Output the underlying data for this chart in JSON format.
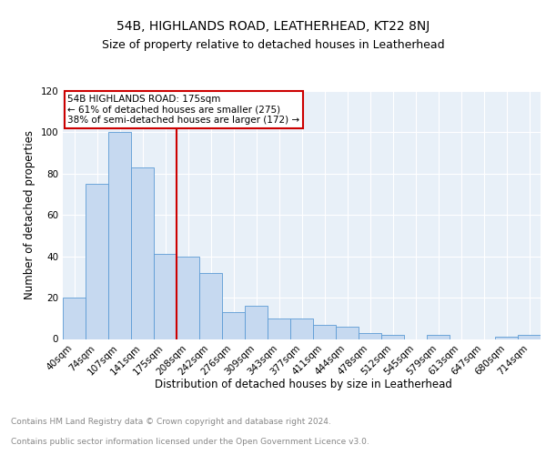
{
  "title": "54B, HIGHLANDS ROAD, LEATHERHEAD, KT22 8NJ",
  "subtitle": "Size of property relative to detached houses in Leatherhead",
  "xlabel": "Distribution of detached houses by size in Leatherhead",
  "ylabel": "Number of detached properties",
  "footer_line1": "Contains HM Land Registry data © Crown copyright and database right 2024.",
  "footer_line2": "Contains public sector information licensed under the Open Government Licence v3.0.",
  "categories": [
    "40sqm",
    "74sqm",
    "107sqm",
    "141sqm",
    "175sqm",
    "208sqm",
    "242sqm",
    "276sqm",
    "309sqm",
    "343sqm",
    "377sqm",
    "411sqm",
    "444sqm",
    "478sqm",
    "512sqm",
    "545sqm",
    "579sqm",
    "613sqm",
    "647sqm",
    "680sqm",
    "714sqm"
  ],
  "values": [
    20,
    75,
    100,
    83,
    41,
    40,
    32,
    13,
    16,
    10,
    10,
    7,
    6,
    3,
    2,
    0,
    2,
    0,
    0,
    1,
    2
  ],
  "bar_color": "#c6d9f0",
  "bar_edge_color": "#5b9bd5",
  "vline_color": "#cc0000",
  "vline_index": 4,
  "annotation_text": "54B HIGHLANDS ROAD: 175sqm\n← 61% of detached houses are smaller (275)\n38% of semi-detached houses are larger (172) →",
  "annotation_box_color": "#cc0000",
  "ylim": [
    0,
    120
  ],
  "yticks": [
    0,
    20,
    40,
    60,
    80,
    100,
    120
  ],
  "background_color": "#e8f0f8",
  "grid_color": "#ffffff",
  "title_fontsize": 10,
  "subtitle_fontsize": 9,
  "axis_label_fontsize": 8.5,
  "tick_fontsize": 7.5,
  "annotation_fontsize": 7.5,
  "footer_fontsize": 6.5
}
